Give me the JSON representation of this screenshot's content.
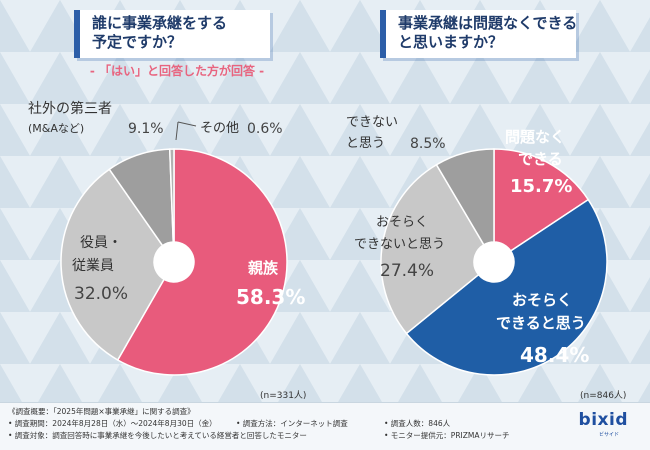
{
  "colors": {
    "pink": "#e85b7c",
    "gray_dark": "#9e9e9e",
    "gray_light": "#c8c8c8",
    "gray_mid": "#b1b1b1",
    "blue": "#1f5ea6",
    "title_blue": "#1f3b6a"
  },
  "left": {
    "title_line1": "誰に事業承継をする",
    "title_line2": "予定ですか？",
    "note": "- 「はい」と回答した方が回答 -",
    "n": "(n=331人)"
  },
  "right": {
    "title_line1": "事業承継は問題なくできる",
    "title_line2": "と思いますか？",
    "n": "(n=846人)"
  },
  "chart_data": [
    {
      "type": "pie",
      "title": "誰に事業承継をする予定ですか？",
      "slices": [
        {
          "label": "親族",
          "value": 58.3,
          "value_text": "58.3%"
        },
        {
          "label": "役員・従業員",
          "value": 32.0,
          "value_text": "32.0%"
        },
        {
          "label": "社外の第三者(M&Aなど)",
          "value": 9.1,
          "value_text": "9.1%"
        },
        {
          "label": "その他",
          "value": 0.6,
          "value_text": "0.6%"
        }
      ]
    },
    {
      "type": "pie",
      "title": "事業承継は問題なくできると思いますか？",
      "slices": [
        {
          "label": "問題なくできる",
          "value": 15.7,
          "value_text": "15.7%"
        },
        {
          "label": "おそらくできると思う",
          "value": 48.4,
          "value_text": "48.4%"
        },
        {
          "label": "おそらくできないと思う",
          "value": 27.4,
          "value_text": "27.4%"
        },
        {
          "label": "できないと思う",
          "value": 8.5,
          "value_text": "8.5%"
        }
      ]
    }
  ],
  "labels": {
    "l_family": "親族",
    "l_family_val": "58.3%",
    "l_staff1": "役員・",
    "l_staff2": "従業員",
    "l_staff_val": "32.0%",
    "l_third1": "社外の第三者",
    "l_third2": "(M&Aなど)",
    "l_third_val": "9.1%",
    "l_other": "その他",
    "l_other_val": "0.6%",
    "r_ok1": "問題なく",
    "r_ok2": "できる",
    "r_ok_val": "15.7%",
    "r_prob1": "おそらく",
    "r_prob2": "できると思う",
    "r_prob_val": "48.4%",
    "r_probno1": "おそらく",
    "r_probno2": "できないと思う",
    "r_probno_val": "27.4%",
    "r_no1": "できない",
    "r_no2": "と思う",
    "r_no_val": "8.5%"
  },
  "footer": {
    "line1": "《調査概要：「2025年問題×事業承継」に関する調査》",
    "period": "• 調査期間：2024年8月28日（水）〜2024年8月30日（金）",
    "method": "• 調査方法：インターネット調査",
    "count": "• 調査人数：846人",
    "target": "• 調査対象：調査回答時に事業承継を今後したいと考えている経営者と回答したモニター",
    "provider": "• モニター提供元：PRIZMAリサーチ",
    "logo": "bixid",
    "logo_sub": "ビサイド"
  }
}
